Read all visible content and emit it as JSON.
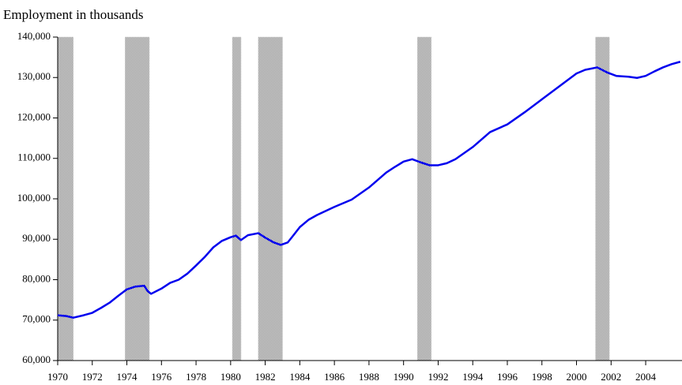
{
  "chart_data": {
    "type": "line",
    "title": "Employment in thousands",
    "x": [
      1970.0,
      1970.5,
      1970.9,
      1971.5,
      1972.0,
      1972.5,
      1973.0,
      1973.5,
      1974.0,
      1974.5,
      1975.0,
      1975.2,
      1975.4,
      1976.0,
      1976.5,
      1977.0,
      1977.5,
      1978.0,
      1978.5,
      1979.0,
      1979.5,
      1980.0,
      1980.3,
      1980.6,
      1981.0,
      1981.6,
      1982.0,
      1982.5,
      1982.9,
      1983.3,
      1983.6,
      1984.0,
      1984.5,
      1985.0,
      1986.0,
      1987.0,
      1988.0,
      1989.0,
      1989.5,
      1990.0,
      1990.5,
      1991.0,
      1991.5,
      1992.0,
      1992.5,
      1993.0,
      1994.0,
      1995.0,
      1996.0,
      1997.0,
      1998.0,
      1999.0,
      2000.0,
      2000.5,
      2001.2,
      2001.8,
      2002.3,
      2003.0,
      2003.5,
      2004.0,
      2004.5,
      2005.0,
      2005.5,
      2006.0
    ],
    "series": [
      {
        "color": "#0000ee",
        "values": [
          71200,
          71000,
          70600,
          71200,
          71800,
          73000,
          74300,
          76000,
          77600,
          78300,
          78500,
          77200,
          76500,
          77800,
          79200,
          80000,
          81500,
          83500,
          85600,
          88000,
          89600,
          90500,
          90900,
          89800,
          91000,
          91500,
          90400,
          89200,
          88600,
          89200,
          90800,
          93000,
          94800,
          96000,
          98000,
          99800,
          102800,
          106500,
          107900,
          109200,
          109800,
          109000,
          108300,
          108300,
          108800,
          109800,
          112800,
          116500,
          118400,
          121400,
          124600,
          127800,
          131000,
          131900,
          132500,
          131200,
          130400,
          130200,
          129900,
          130400,
          131500,
          132500,
          133300,
          133900
        ]
      }
    ],
    "shaded_periods": [
      [
        1970.0,
        1970.9
      ],
      [
        1973.9,
        1975.3
      ],
      [
        1980.1,
        1980.6
      ],
      [
        1981.6,
        1983.0
      ],
      [
        1990.8,
        1991.6
      ],
      [
        2001.1,
        2001.9
      ]
    ],
    "shade_color": "#c8c8c8",
    "xlim": [
      1970,
      2006.1
    ],
    "xticks": [
      1970,
      1972,
      1974,
      1976,
      1978,
      1980,
      1982,
      1984,
      1986,
      1988,
      1990,
      1992,
      1994,
      1996,
      1998,
      2000,
      2002,
      2004
    ],
    "ylim": [
      60000,
      140000
    ],
    "yticks": [
      {
        "value": 60000,
        "label": "60,000"
      },
      {
        "value": 70000,
        "label": "70,000"
      },
      {
        "value": 80000,
        "label": "80,000"
      },
      {
        "value": 90000,
        "label": "90,000"
      },
      {
        "value": 100000,
        "label": "100,000"
      },
      {
        "value": 110000,
        "label": "110,000"
      },
      {
        "value": 120000,
        "label": "120,000"
      },
      {
        "value": 130000,
        "label": "130,000"
      },
      {
        "value": 140000,
        "label": "140,000"
      }
    ]
  }
}
